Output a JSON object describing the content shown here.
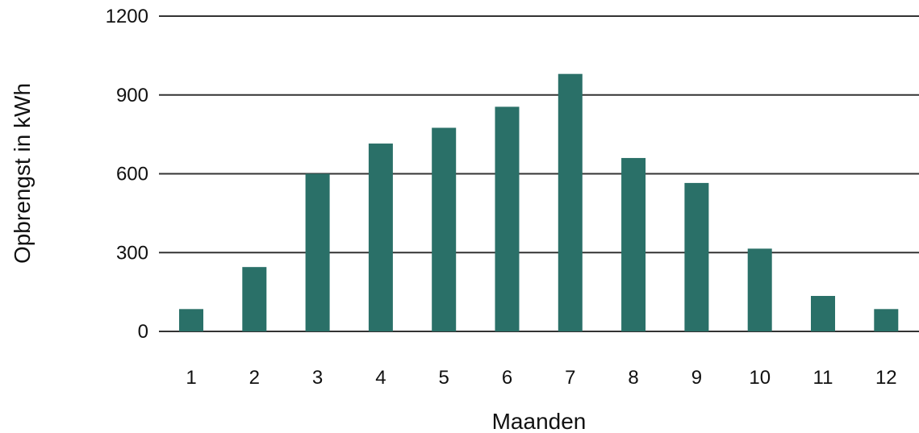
{
  "chart_data": {
    "type": "bar",
    "title": "",
    "xlabel": "Maanden",
    "ylabel": "Opbrengst in kWh",
    "categories": [
      "1",
      "2",
      "3",
      "4",
      "5",
      "6",
      "7",
      "8",
      "9",
      "10",
      "11",
      "12"
    ],
    "values": [
      85,
      245,
      600,
      715,
      775,
      855,
      980,
      660,
      565,
      315,
      135,
      85
    ],
    "ylim": [
      0,
      1200
    ],
    "yticks": [
      "0",
      "300",
      "600",
      "900",
      "1200"
    ],
    "grid": true,
    "legend": "none",
    "colors": {
      "bar": "#2a7068",
      "gridline": "#333333"
    }
  }
}
